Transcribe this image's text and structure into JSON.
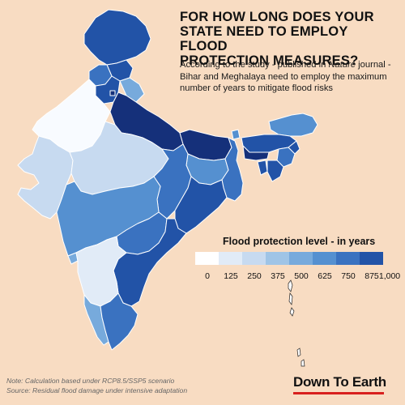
{
  "header": {
    "title_line1": "FOR HOW LONG DOES YOUR",
    "title_line2": "STATE NEED TO EMPLOY FLOOD",
    "title_line3": "PROTECTION MEASURES?",
    "subtitle_part1": "According to the study - published in ",
    "subtitle_journal": "Nature",
    "subtitle_part2": " journal - Bihar and Meghalaya need to employ the maximum number of years to mitigate flood risks"
  },
  "legend": {
    "title": "Flood protection level - in years",
    "ticks": [
      "0",
      "125",
      "250",
      "375",
      "500",
      "625",
      "750",
      "875",
      "1,000"
    ],
    "colors": [
      "#ffffff",
      "#e1ebf7",
      "#c7daf0",
      "#9fc4e6",
      "#77aadc",
      "#5590d0",
      "#3a72c0",
      "#2253a7",
      "#15307a"
    ]
  },
  "footer": {
    "note": "Note: Calculation based under RCP8.5/SSP5 scenario",
    "source": "Source:  Residual flood damage under intensive adaptation",
    "brand": "Down To Earth"
  },
  "colors": {
    "background": "#f8dcc2",
    "brand_underline": "#d8201e",
    "state_border": "#ffffff"
  }
}
